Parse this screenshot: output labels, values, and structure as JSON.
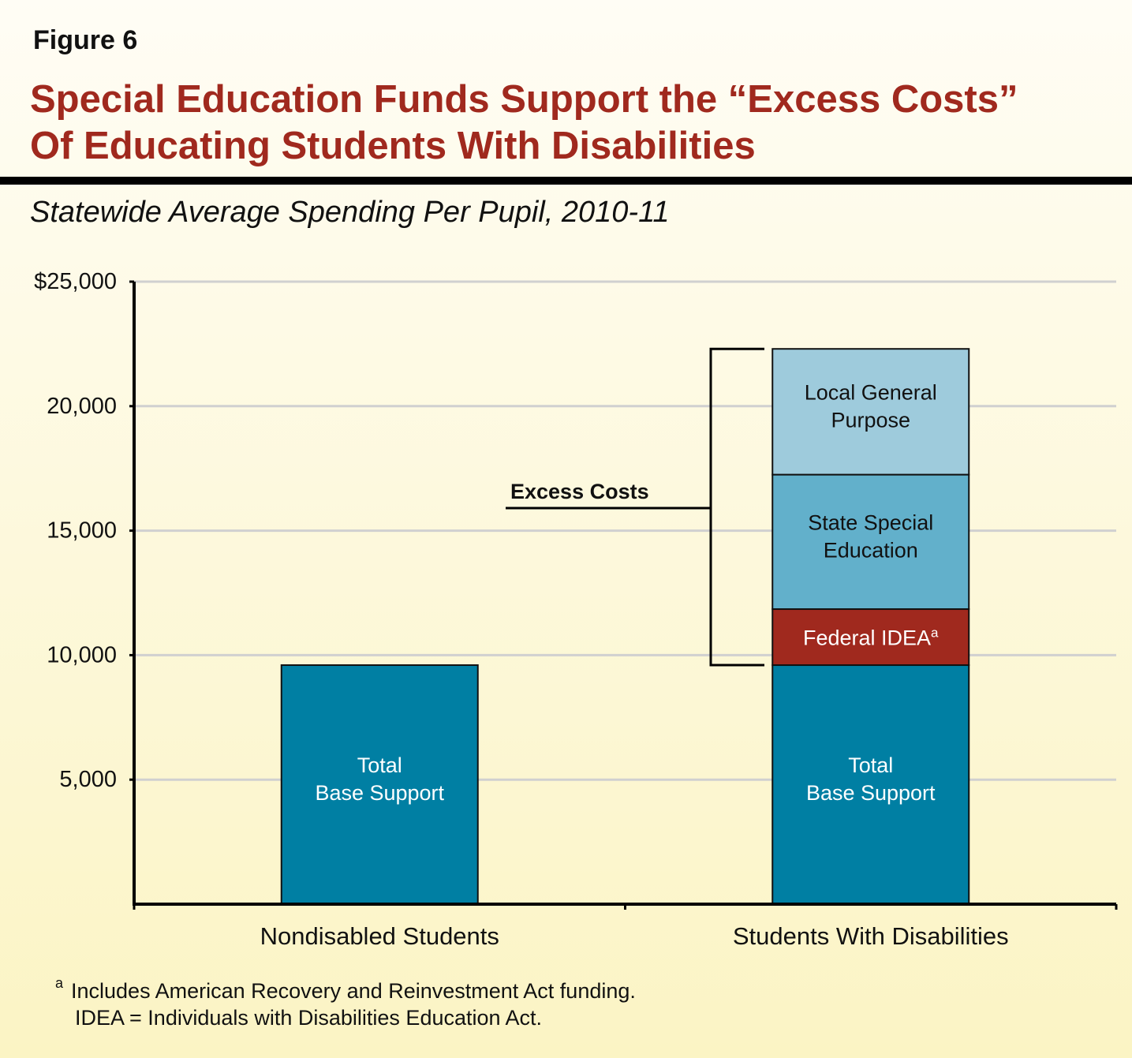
{
  "figure_label": "Figure 6",
  "title_line1": "Special Education Funds Support the “Excess Costs”",
  "title_line2": "Of Educating Students With Disabilities",
  "footnote_line1": "Includes American Recovery and Reinvestment Act funding.",
  "footnote_marker": "a",
  "footnote_line2": "IDEA = Individuals with Disabilities Education Act.",
  "colors": {
    "title": "#a0291e",
    "base": "#007fa3",
    "federal": "#a0291e",
    "state": "#62b0cb",
    "local": "#9ecbdc"
  },
  "chart_data": {
    "type": "bar",
    "stacked": true,
    "title": "Statewide Average Spending Per Pupil, 2010-11",
    "xlabel": "",
    "ylabel": "",
    "ylim": [
      0,
      25000
    ],
    "yticks": [
      5000,
      10000,
      15000,
      20000,
      25000
    ],
    "ytick_labels": [
      "5,000",
      "10,000",
      "15,000",
      "20,000",
      "$25,000"
    ],
    "grid": true,
    "categories": [
      "Nondisabled Students",
      "Students With Disabilities"
    ],
    "series": [
      {
        "name": "Total Base Support",
        "label_lines": [
          "Total",
          "Base Support"
        ],
        "color": "#007fa3",
        "text_color": "#ffffff",
        "values": [
          9600,
          9600
        ]
      },
      {
        "name": "Federal IDEA",
        "label_lines": [
          "Federal IDEA"
        ],
        "superscript": "a",
        "color": "#a0291e",
        "text_color": "#ffffff",
        "values": [
          0,
          2250
        ]
      },
      {
        "name": "State Special Education",
        "label_lines": [
          "State Special",
          "Education"
        ],
        "color": "#62b0cb",
        "text_color": "#111111",
        "values": [
          0,
          5400
        ]
      },
      {
        "name": "Local General Purpose",
        "label_lines": [
          "Local General",
          "Purpose"
        ],
        "color": "#9ecbdc",
        "text_color": "#111111",
        "values": [
          0,
          5050
        ]
      }
    ],
    "annotation": "Excess Costs"
  }
}
